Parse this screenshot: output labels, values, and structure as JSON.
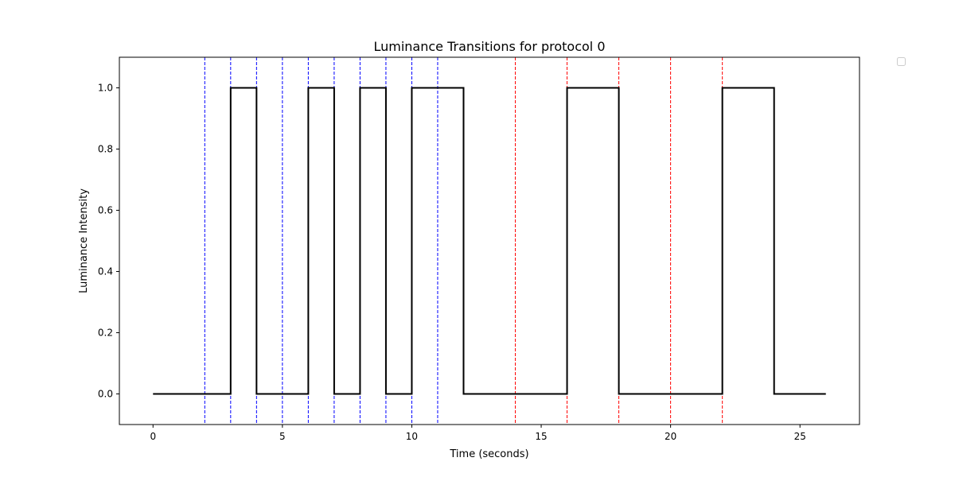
{
  "chart_data": {
    "type": "line",
    "title": "Luminance Transitions for protocol 0",
    "xlabel": "Time (seconds)",
    "ylabel": "Luminance Intensity",
    "xlim": [
      -1.3,
      27.3
    ],
    "ylim": [
      -0.1,
      1.1
    ],
    "xticks": [
      0,
      5,
      10,
      15,
      20,
      25
    ],
    "yticks": [
      0.0,
      0.2,
      0.4,
      0.6,
      0.8,
      1.0
    ],
    "xtick_labels": [
      "0",
      "5",
      "10",
      "15",
      "20",
      "25"
    ],
    "ytick_labels": [
      "0.0",
      "0.2",
      "0.4",
      "0.6",
      "0.8",
      "1.0"
    ],
    "grid": false,
    "legend": {
      "placement": "outside-top-right",
      "entries": []
    },
    "series": [
      {
        "style": "step",
        "color": "#000000",
        "points": [
          [
            0,
            0
          ],
          [
            3,
            0
          ],
          [
            3,
            1
          ],
          [
            4,
            1
          ],
          [
            4,
            0
          ],
          [
            6,
            0
          ],
          [
            6,
            1
          ],
          [
            7,
            1
          ],
          [
            7,
            0
          ],
          [
            8,
            0
          ],
          [
            8,
            1
          ],
          [
            9,
            1
          ],
          [
            9,
            0
          ],
          [
            10,
            0
          ],
          [
            10,
            1
          ],
          [
            12,
            1
          ],
          [
            12,
            0
          ],
          [
            16,
            0
          ],
          [
            16,
            1
          ],
          [
            18,
            1
          ],
          [
            18,
            0
          ],
          [
            22,
            0
          ],
          [
            22,
            1
          ],
          [
            24,
            1
          ],
          [
            24,
            0
          ],
          [
            26,
            0
          ]
        ]
      }
    ],
    "vlines": [
      {
        "color": "#0000ff",
        "style": "dashed",
        "x": [
          2,
          3,
          4,
          5,
          6,
          7,
          8,
          9,
          10,
          11
        ]
      },
      {
        "color": "#ff0000",
        "style": "dashed",
        "x": [
          14,
          16,
          18,
          20,
          22
        ]
      }
    ]
  }
}
